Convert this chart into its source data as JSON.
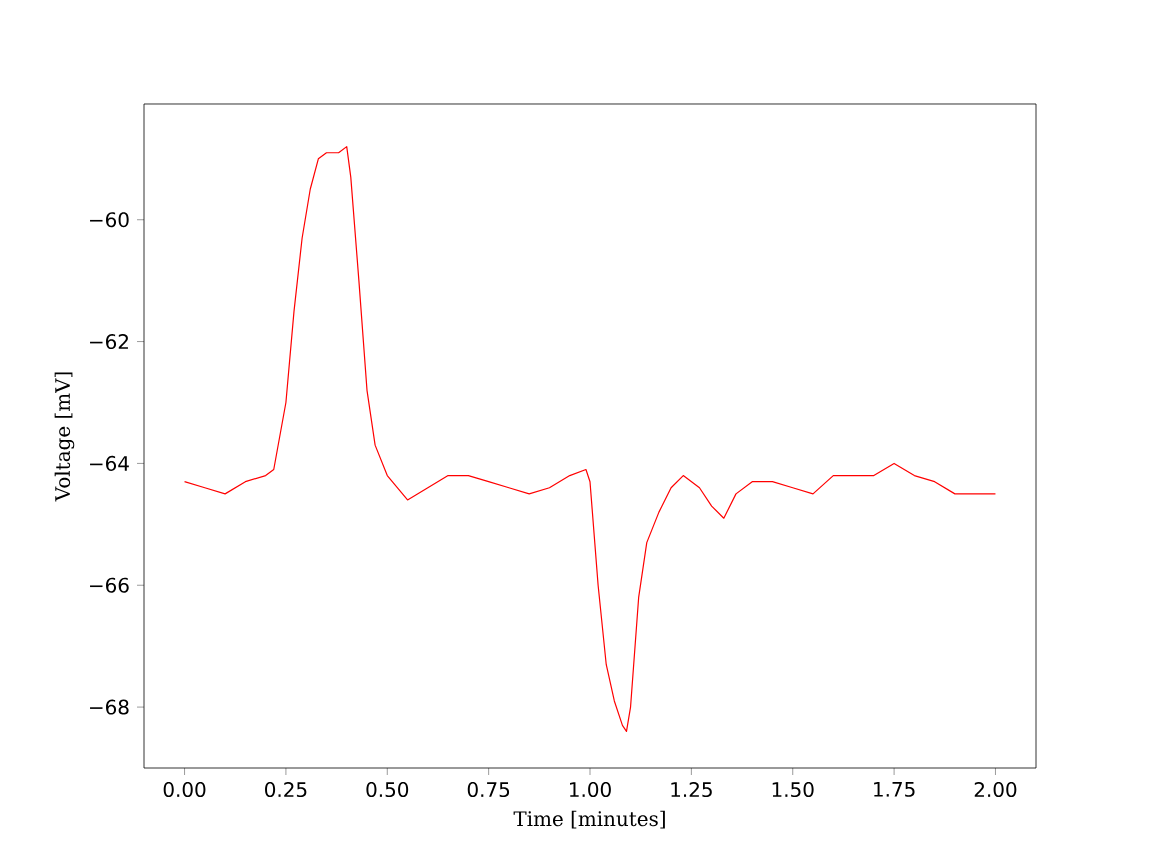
{
  "chart_data": {
    "type": "line",
    "xlabel": "Time [minutes]",
    "ylabel": "Voltage [mV]",
    "x": [
      0.0,
      0.05,
      0.1,
      0.15,
      0.2,
      0.22,
      0.25,
      0.27,
      0.29,
      0.31,
      0.33,
      0.35,
      0.38,
      0.4,
      0.41,
      0.43,
      0.45,
      0.47,
      0.5,
      0.55,
      0.6,
      0.65,
      0.7,
      0.75,
      0.8,
      0.85,
      0.9,
      0.95,
      0.99,
      1.0,
      1.02,
      1.04,
      1.06,
      1.08,
      1.09,
      1.1,
      1.12,
      1.14,
      1.17,
      1.2,
      1.23,
      1.27,
      1.3,
      1.33,
      1.36,
      1.4,
      1.45,
      1.5,
      1.55,
      1.6,
      1.65,
      1.7,
      1.75,
      1.8,
      1.85,
      1.9,
      1.95,
      2.0
    ],
    "series": [
      {
        "color": "#ff0000",
        "values": [
          -64.3,
          -64.4,
          -64.5,
          -64.3,
          -64.2,
          -64.1,
          -63.0,
          -61.5,
          -60.3,
          -59.5,
          -59.0,
          -58.9,
          -58.9,
          -58.8,
          -59.3,
          -61.0,
          -62.8,
          -63.7,
          -64.2,
          -64.6,
          -64.4,
          -64.2,
          -64.2,
          -64.3,
          -64.4,
          -64.5,
          -64.4,
          -64.2,
          -64.1,
          -64.3,
          -66.0,
          -67.3,
          -67.9,
          -68.3,
          -68.4,
          -68.0,
          -66.2,
          -65.3,
          -64.8,
          -64.4,
          -64.2,
          -64.4,
          -64.7,
          -64.9,
          -64.5,
          -64.3,
          -64.3,
          -64.4,
          -64.5,
          -64.2,
          -64.2,
          -64.2,
          -64.0,
          -64.2,
          -64.3,
          -64.5,
          -64.5,
          -64.5
        ]
      }
    ],
    "xlim": [
      -0.1,
      2.1
    ],
    "ylim": [
      -69,
      -58.1
    ],
    "xticks": [
      {
        "value": 0,
        "label": "0.00"
      },
      {
        "value": 0.25,
        "label": "0.25"
      },
      {
        "value": 0.5,
        "label": "0.50"
      },
      {
        "value": 0.75,
        "label": "0.75"
      },
      {
        "value": 1,
        "label": "1.00"
      },
      {
        "value": 1.25,
        "label": "1.25"
      },
      {
        "value": 1.5,
        "label": "1.50"
      },
      {
        "value": 1.75,
        "label": "1.75"
      },
      {
        "value": 2,
        "label": "2.00"
      }
    ],
    "yticks": [
      {
        "value": -68,
        "label": "−68"
      },
      {
        "value": -66,
        "label": "−66"
      },
      {
        "value": -64,
        "label": "−64"
      },
      {
        "value": -62,
        "label": "−62"
      },
      {
        "value": -60,
        "label": "−60"
      }
    ],
    "marker": "none",
    "line_style": "solid"
  }
}
